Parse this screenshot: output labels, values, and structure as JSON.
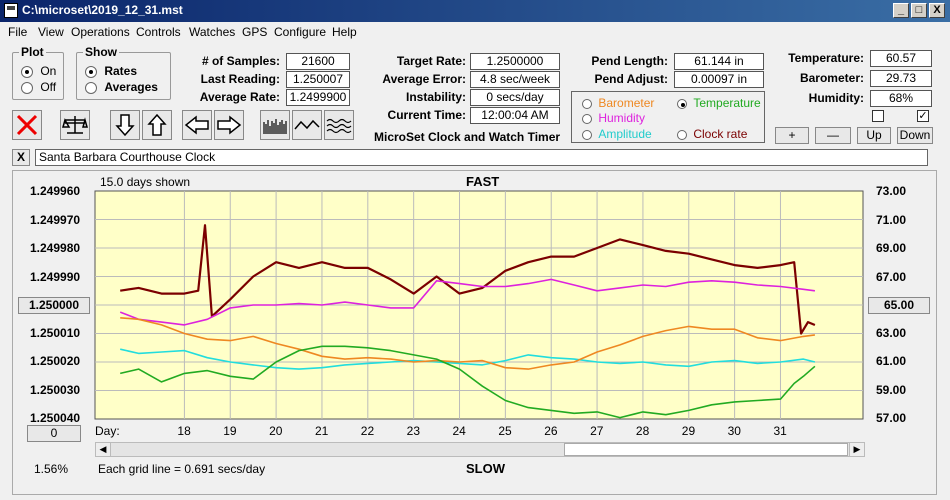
{
  "window": {
    "title": "C:\\microset\\2019_12_31.mst",
    "btn_min": "_",
    "btn_max": "□",
    "btn_close": "X"
  },
  "menu": [
    "File",
    "View",
    "Operations",
    "Controls",
    "Watches",
    "GPS",
    "Configure",
    "Help"
  ],
  "plot_group": {
    "title": "Plot",
    "on": "On",
    "off": "Off",
    "selected": "On"
  },
  "show_group": {
    "title": "Show",
    "rates": "Rates",
    "averages": "Averages",
    "selected": "Rates"
  },
  "stats": {
    "samples_label": "# of Samples:",
    "samples": "21600",
    "last_label": "Last Reading:",
    "last": "1.250007",
    "avg_label": "Average Rate:",
    "avg": "1.2499900"
  },
  "rate": {
    "target_label": "Target Rate:",
    "target": "1.2500000",
    "error_label": "Average Error:",
    "error": "4.8 sec/week",
    "instab_label": "Instability:",
    "instab": "0 secs/day",
    "time_label": "Current Time:",
    "time": "12:00:04 AM"
  },
  "pend": {
    "length_label": "Pend Length:",
    "length": "61.144 in",
    "adjust_label": "Pend Adjust:",
    "adjust": "0.00097 in"
  },
  "env": {
    "temp_label": "Temperature:",
    "temp": "60.57",
    "baro_label": "Barometer:",
    "baro": "29.73",
    "hum_label": "Humidity:",
    "hum": "68%"
  },
  "series_select": {
    "barometer": "Barometer",
    "temperature": "Temperature",
    "humidity": "Humidity",
    "amplitude": "Amplitude",
    "clock_rate": "Clock rate",
    "selected": "Temperature"
  },
  "env_buttons": {
    "plus": "+",
    "minus": "—",
    "up": "Up",
    "down": "Down"
  },
  "checkbox_checked": "✓",
  "app_caption": "MicroSet Clock and Watch Timer",
  "clock_name": "Santa Barbara Courthouse Clock",
  "clear_button": "X",
  "colors": {
    "clock_rate": "#7b0000",
    "humidity": "#dd22dd",
    "amplitude": "#22dddd",
    "barometer": "#ee8822",
    "temperature": "#22aa22",
    "plot_bg": "#ffffc8"
  },
  "chart_data": {
    "type": "line",
    "top_label": "FAST",
    "bottom_label": "SLOW",
    "days_shown": "15.0 days shown",
    "grid_note": "Each grid line = 0.691 secs/day",
    "left_ticks": [
      "1.249960",
      "1.249970",
      "1.249980",
      "1.249990",
      "1.250000",
      "1.250010",
      "1.250020",
      "1.250030",
      "1.250040"
    ],
    "right_ticks": [
      "73.00",
      "71.00",
      "69.00",
      "67.00",
      "65.00",
      "63.00",
      "61.00",
      "59.00",
      "57.00"
    ],
    "center_left_button": "1.250000",
    "center_right_button": "65.00",
    "day_label": "Day:",
    "days": [
      "18",
      "19",
      "20",
      "21",
      "22",
      "23",
      "24",
      "25",
      "26",
      "27",
      "28",
      "29",
      "30",
      "31"
    ],
    "zero_button": "0",
    "percent": "1.56%",
    "series": [
      {
        "name": "Clock rate",
        "color": "#7b0000",
        "x": [
          16.6,
          17.0,
          17.5,
          18.0,
          18.3,
          18.45,
          18.6,
          19.0,
          19.5,
          20.0,
          20.5,
          21.0,
          21.5,
          22.0,
          22.5,
          23.0,
          23.5,
          24.0,
          24.5,
          25.0,
          25.5,
          26.0,
          26.5,
          27.0,
          27.5,
          28.0,
          28.5,
          29.0,
          29.5,
          30.0,
          30.5,
          31.0,
          31.3,
          31.45,
          31.6,
          31.75
        ],
        "y": [
          1.249995,
          1.249994,
          1.249996,
          1.249996,
          1.249995,
          1.249972,
          1.250004,
          1.249998,
          1.24999,
          1.249985,
          1.249987,
          1.249985,
          1.249987,
          1.249987,
          1.249991,
          1.249996,
          1.24999,
          1.249996,
          1.249994,
          1.249988,
          1.249985,
          1.249983,
          1.249983,
          1.24998,
          1.249977,
          1.249979,
          1.249981,
          1.249982,
          1.249984,
          1.249986,
          1.249987,
          1.249986,
          1.249985,
          1.25001,
          1.250006,
          1.250007
        ]
      },
      {
        "name": "Humidity",
        "color": "#dd22dd",
        "x": [
          16.6,
          17.0,
          17.5,
          18.0,
          18.5,
          19.0,
          19.5,
          20.0,
          20.5,
          21.0,
          21.5,
          22.0,
          22.5,
          23.0,
          23.5,
          24.0,
          24.5,
          25.0,
          25.5,
          26.0,
          26.5,
          27.0,
          27.5,
          28.0,
          28.5,
          29.0,
          29.5,
          30.0,
          30.5,
          31.0,
          31.5,
          31.75
        ],
        "y": [
          64.5,
          64.0,
          63.8,
          63.6,
          64.0,
          64.8,
          65.0,
          65.0,
          65.1,
          65.0,
          65.2,
          65.0,
          64.8,
          64.8,
          66.7,
          66.5,
          66.3,
          66.3,
          66.5,
          66.8,
          66.4,
          66.0,
          66.2,
          66.4,
          66.3,
          66.6,
          66.7,
          66.6,
          66.4,
          66.3,
          66.1,
          66.0
        ]
      },
      {
        "name": "Amplitude",
        "color": "#22dddd",
        "x": [
          16.6,
          17.0,
          17.5,
          18.0,
          18.5,
          19.0,
          19.5,
          20.0,
          20.5,
          21.0,
          21.5,
          22.0,
          22.5,
          23.0,
          23.5,
          24.0,
          24.5,
          25.0,
          25.5,
          26.0,
          26.5,
          27.0,
          27.5,
          28.0,
          28.5,
          29.0,
          29.5,
          30.0,
          30.5,
          31.0,
          31.5,
          31.75
        ],
        "y": [
          61.9,
          61.6,
          61.7,
          61.8,
          61.3,
          61.0,
          60.8,
          60.6,
          60.5,
          60.6,
          60.8,
          60.9,
          61.0,
          61.1,
          61.0,
          60.9,
          60.8,
          61.1,
          61.5,
          61.3,
          61.2,
          61.0,
          60.9,
          61.0,
          60.8,
          60.7,
          61.0,
          61.1,
          60.9,
          61.0,
          61.2,
          61.0
        ]
      },
      {
        "name": "Barometer",
        "color": "#ee8822",
        "x": [
          16.6,
          17.0,
          17.5,
          18.0,
          18.5,
          19.0,
          19.5,
          20.0,
          20.5,
          21.0,
          21.5,
          22.0,
          22.5,
          23.0,
          23.5,
          24.0,
          24.5,
          25.0,
          25.5,
          26.0,
          26.5,
          27.0,
          27.5,
          28.0,
          28.5,
          29.0,
          29.5,
          30.0,
          30.5,
          31.0,
          31.5,
          31.75
        ],
        "y": [
          64.1,
          64.0,
          63.6,
          63.0,
          62.6,
          62.5,
          62.8,
          62.3,
          61.9,
          61.4,
          61.2,
          61.3,
          61.2,
          61.0,
          61.1,
          61.0,
          61.1,
          60.6,
          60.5,
          60.8,
          61.0,
          61.7,
          62.2,
          62.8,
          63.2,
          63.5,
          63.3,
          63.3,
          62.7,
          62.5,
          62.8,
          62.9
        ]
      },
      {
        "name": "Temperature",
        "color": "#22aa22",
        "x": [
          16.6,
          17.0,
          17.5,
          18.0,
          18.5,
          19.0,
          19.5,
          20.0,
          20.5,
          21.0,
          21.5,
          22.0,
          22.5,
          23.0,
          23.5,
          24.0,
          24.5,
          25.0,
          25.5,
          26.0,
          26.5,
          27.0,
          27.5,
          28.0,
          28.5,
          29.0,
          29.5,
          30.0,
          30.5,
          31.0,
          31.3,
          31.5,
          31.75
        ],
        "y": [
          60.2,
          60.5,
          59.6,
          60.2,
          60.4,
          60.0,
          59.8,
          61.0,
          61.8,
          62.1,
          62.1,
          62.0,
          61.8,
          61.5,
          61.2,
          60.5,
          59.3,
          58.3,
          57.8,
          57.6,
          57.4,
          57.5,
          57.1,
          57.5,
          57.3,
          57.6,
          58.0,
          58.2,
          58.3,
          58.4,
          59.5,
          60.0,
          60.7
        ]
      }
    ]
  }
}
